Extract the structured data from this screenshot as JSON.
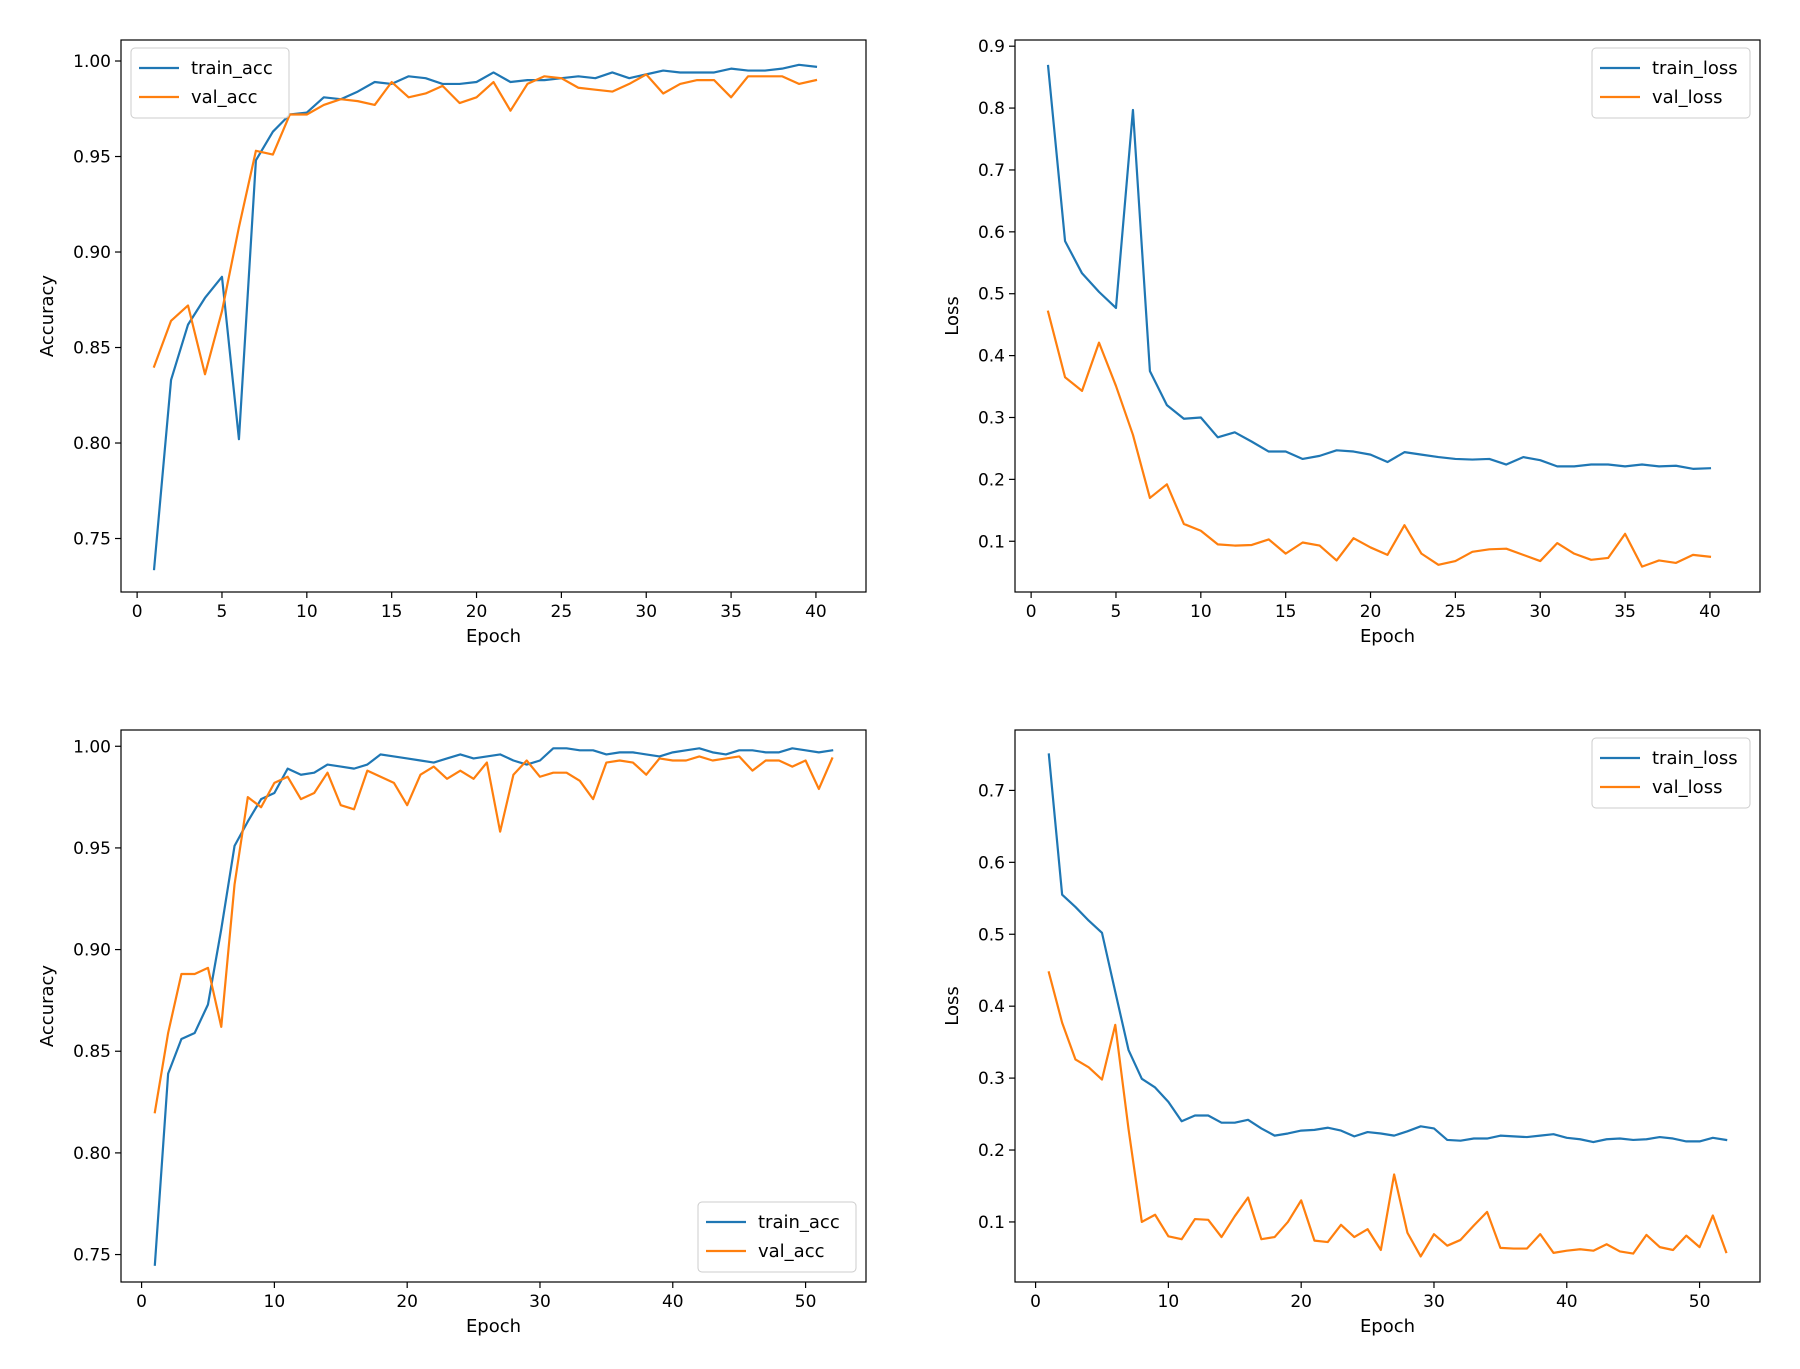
{
  "colors": {
    "train": "#1f77b4",
    "val": "#ff7f0e"
  },
  "chart_data": [
    {
      "type": "line",
      "xlabel": "Epoch",
      "ylabel": "Accuracy",
      "xlim": [
        -0.95,
        42.95
      ],
      "ylim": [
        0.722,
        1.011
      ],
      "xticks": [
        0,
        5,
        10,
        15,
        20,
        25,
        30,
        35,
        40
      ],
      "yticks": [
        0.75,
        0.8,
        0.85,
        0.9,
        0.95,
        1.0
      ],
      "ytick_labels": [
        "0.75",
        "0.80",
        "0.85",
        "0.90",
        "0.95",
        "1.00"
      ],
      "legend_position": "upper-left",
      "x": [
        1,
        2,
        3,
        4,
        5,
        6,
        7,
        8,
        9,
        10,
        11,
        12,
        13,
        14,
        15,
        16,
        17,
        18,
        19,
        20,
        21,
        22,
        23,
        24,
        25,
        26,
        27,
        28,
        29,
        30,
        31,
        32,
        33,
        34,
        35,
        36,
        37,
        38,
        39,
        40
      ],
      "series": [
        {
          "name": "train_acc",
          "color_key": "train",
          "values": [
            0.734,
            0.833,
            0.862,
            0.876,
            0.887,
            0.802,
            0.948,
            0.963,
            0.972,
            0.973,
            0.981,
            0.98,
            0.984,
            0.989,
            0.988,
            0.992,
            0.991,
            0.988,
            0.988,
            0.989,
            0.994,
            0.989,
            0.99,
            0.99,
            0.991,
            0.992,
            0.991,
            0.994,
            0.991,
            0.993,
            0.995,
            0.994,
            0.994,
            0.994,
            0.996,
            0.995,
            0.995,
            0.996,
            0.998,
            0.997
          ]
        },
        {
          "name": "val_acc",
          "color_key": "val",
          "values": [
            0.84,
            0.864,
            0.872,
            0.836,
            0.869,
            0.913,
            0.953,
            0.951,
            0.972,
            0.972,
            0.977,
            0.98,
            0.979,
            0.977,
            0.989,
            0.981,
            0.983,
            0.987,
            0.978,
            0.981,
            0.989,
            0.974,
            0.988,
            0.992,
            0.991,
            0.986,
            0.985,
            0.984,
            0.988,
            0.993,
            0.983,
            0.988,
            0.99,
            0.99,
            0.981,
            0.992,
            0.992,
            0.992,
            0.988,
            0.99
          ]
        }
      ]
    },
    {
      "type": "line",
      "xlabel": "Epoch",
      "ylabel": "Loss",
      "xlim": [
        -0.95,
        42.95
      ],
      "ylim": [
        0.018,
        0.91
      ],
      "xticks": [
        0,
        5,
        10,
        15,
        20,
        25,
        30,
        35,
        40
      ],
      "yticks": [
        0.1,
        0.2,
        0.3,
        0.4,
        0.5,
        0.6,
        0.7,
        0.8,
        0.9
      ],
      "ytick_labels": [
        "0.1",
        "0.2",
        "0.3",
        "0.4",
        "0.5",
        "0.6",
        "0.7",
        "0.8",
        "0.9"
      ],
      "legend_position": "upper-right",
      "x": [
        1,
        2,
        3,
        4,
        5,
        6,
        7,
        8,
        9,
        10,
        11,
        12,
        13,
        14,
        15,
        16,
        17,
        18,
        19,
        20,
        21,
        22,
        23,
        24,
        25,
        26,
        27,
        28,
        29,
        30,
        31,
        32,
        33,
        34,
        35,
        36,
        37,
        38,
        39,
        40
      ],
      "series": [
        {
          "name": "train_loss",
          "color_key": "train",
          "values": [
            0.868,
            0.585,
            0.533,
            0.503,
            0.477,
            0.797,
            0.375,
            0.32,
            0.298,
            0.3,
            0.268,
            0.276,
            0.261,
            0.245,
            0.245,
            0.233,
            0.238,
            0.247,
            0.245,
            0.24,
            0.228,
            0.244,
            0.24,
            0.236,
            0.233,
            0.232,
            0.233,
            0.224,
            0.236,
            0.231,
            0.221,
            0.221,
            0.224,
            0.224,
            0.221,
            0.224,
            0.221,
            0.222,
            0.217,
            0.218
          ]
        },
        {
          "name": "val_loss",
          "color_key": "val",
          "values": [
            0.471,
            0.365,
            0.343,
            0.421,
            0.351,
            0.272,
            0.17,
            0.192,
            0.128,
            0.117,
            0.095,
            0.093,
            0.094,
            0.103,
            0.08,
            0.098,
            0.093,
            0.069,
            0.105,
            0.09,
            0.078,
            0.126,
            0.08,
            0.062,
            0.068,
            0.083,
            0.087,
            0.088,
            0.078,
            0.068,
            0.097,
            0.08,
            0.07,
            0.073,
            0.112,
            0.059,
            0.069,
            0.065,
            0.078,
            0.075
          ]
        }
      ]
    },
    {
      "type": "line",
      "xlabel": "Epoch",
      "ylabel": "Accuracy",
      "xlim": [
        -1.55,
        54.55
      ],
      "ylim": [
        0.7365,
        1.008
      ],
      "xticks": [
        0,
        10,
        20,
        30,
        40,
        50
      ],
      "yticks": [
        0.75,
        0.8,
        0.85,
        0.9,
        0.95,
        1.0
      ],
      "ytick_labels": [
        "0.75",
        "0.80",
        "0.85",
        "0.90",
        "0.95",
        "1.00"
      ],
      "legend_position": "lower-right",
      "x": [
        1,
        2,
        3,
        4,
        5,
        6,
        7,
        8,
        9,
        10,
        11,
        12,
        13,
        14,
        15,
        16,
        17,
        18,
        19,
        20,
        21,
        22,
        23,
        24,
        25,
        26,
        27,
        28,
        29,
        30,
        31,
        32,
        33,
        34,
        35,
        36,
        37,
        38,
        39,
        40,
        41,
        42,
        43,
        44,
        45,
        46,
        47,
        48,
        49,
        50,
        51,
        52
      ],
      "series": [
        {
          "name": "train_acc",
          "color_key": "train",
          "values": [
            0.745,
            0.839,
            0.856,
            0.859,
            0.873,
            0.91,
            0.951,
            0.963,
            0.974,
            0.977,
            0.989,
            0.986,
            0.987,
            0.991,
            0.99,
            0.989,
            0.991,
            0.996,
            0.995,
            0.994,
            0.993,
            0.992,
            0.994,
            0.996,
            0.994,
            0.995,
            0.996,
            0.993,
            0.991,
            0.993,
            0.999,
            0.999,
            0.998,
            0.998,
            0.996,
            0.997,
            0.997,
            0.996,
            0.995,
            0.997,
            0.998,
            0.999,
            0.997,
            0.996,
            0.998,
            0.998,
            0.997,
            0.997,
            0.999,
            0.998,
            0.997,
            0.998
          ]
        },
        {
          "name": "val_acc",
          "color_key": "val",
          "values": [
            0.82,
            0.859,
            0.888,
            0.888,
            0.891,
            0.862,
            0.932,
            0.975,
            0.97,
            0.982,
            0.985,
            0.974,
            0.977,
            0.987,
            0.971,
            0.969,
            0.988,
            0.985,
            0.982,
            0.971,
            0.986,
            0.99,
            0.984,
            0.988,
            0.984,
            0.992,
            0.958,
            0.986,
            0.993,
            0.985,
            0.987,
            0.987,
            0.983,
            0.974,
            0.992,
            0.993,
            0.992,
            0.986,
            0.994,
            0.993,
            0.993,
            0.995,
            0.993,
            0.994,
            0.995,
            0.988,
            0.993,
            0.993,
            0.99,
            0.993,
            0.979,
            0.994
          ]
        }
      ]
    },
    {
      "type": "line",
      "xlabel": "Epoch",
      "ylabel": "Loss",
      "xlim": [
        -1.55,
        54.55
      ],
      "ylim": [
        0.0165,
        0.784
      ],
      "xticks": [
        0,
        10,
        20,
        30,
        40,
        50
      ],
      "yticks": [
        0.1,
        0.2,
        0.3,
        0.4,
        0.5,
        0.6,
        0.7
      ],
      "ytick_labels": [
        "0.1",
        "0.2",
        "0.3",
        "0.4",
        "0.5",
        "0.6",
        "0.7"
      ],
      "legend_position": "upper-right",
      "x": [
        1,
        2,
        3,
        4,
        5,
        6,
        7,
        8,
        9,
        10,
        11,
        12,
        13,
        14,
        15,
        16,
        17,
        18,
        19,
        20,
        21,
        22,
        23,
        24,
        25,
        26,
        27,
        28,
        29,
        30,
        31,
        32,
        33,
        34,
        35,
        36,
        37,
        38,
        39,
        40,
        41,
        42,
        43,
        44,
        45,
        46,
        47,
        48,
        49,
        50,
        51,
        52
      ],
      "series": [
        {
          "name": "train_loss",
          "color_key": "train",
          "values": [
            0.75,
            0.555,
            0.538,
            0.519,
            0.502,
            0.42,
            0.339,
            0.299,
            0.287,
            0.267,
            0.24,
            0.248,
            0.248,
            0.238,
            0.238,
            0.242,
            0.23,
            0.22,
            0.223,
            0.227,
            0.228,
            0.231,
            0.227,
            0.219,
            0.225,
            0.223,
            0.22,
            0.226,
            0.233,
            0.23,
            0.214,
            0.213,
            0.216,
            0.216,
            0.22,
            0.219,
            0.218,
            0.22,
            0.222,
            0.217,
            0.215,
            0.211,
            0.215,
            0.216,
            0.214,
            0.215,
            0.218,
            0.216,
            0.212,
            0.212,
            0.217,
            0.214
          ]
        },
        {
          "name": "val_loss",
          "color_key": "val",
          "values": [
            0.447,
            0.377,
            0.326,
            0.315,
            0.298,
            0.374,
            0.229,
            0.1,
            0.11,
            0.08,
            0.076,
            0.104,
            0.103,
            0.079,
            0.108,
            0.134,
            0.076,
            0.079,
            0.1,
            0.13,
            0.074,
            0.072,
            0.096,
            0.079,
            0.09,
            0.061,
            0.166,
            0.085,
            0.052,
            0.083,
            0.067,
            0.075,
            0.095,
            0.114,
            0.064,
            0.063,
            0.063,
            0.083,
            0.057,
            0.06,
            0.062,
            0.06,
            0.069,
            0.059,
            0.056,
            0.082,
            0.065,
            0.061,
            0.081,
            0.065,
            0.109,
            0.058
          ]
        }
      ]
    }
  ]
}
